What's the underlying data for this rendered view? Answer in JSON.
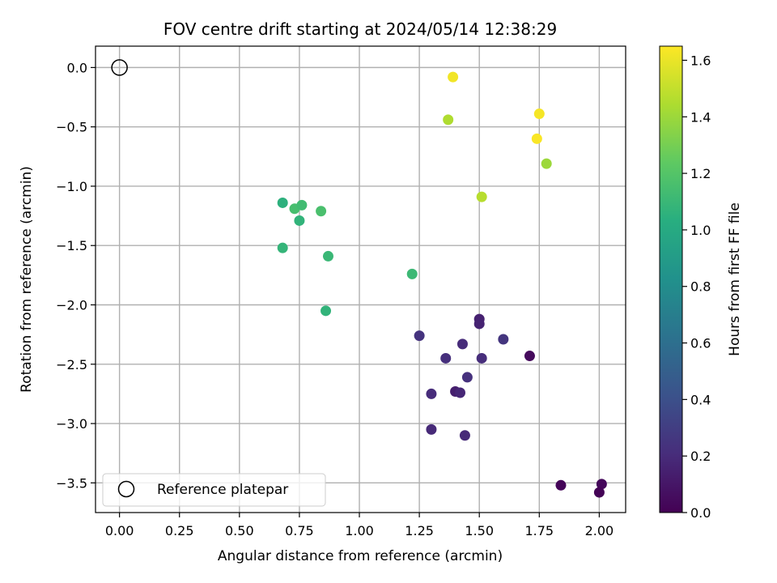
{
  "chart_data": {
    "type": "scatter",
    "title": "FOV centre drift starting at 2024/05/14 12:38:29",
    "xlabel": "Angular distance from reference (arcmin)",
    "ylabel": "Rotation from reference (arcmin)",
    "xlim": [
      -0.1,
      2.11
    ],
    "ylim": [
      -3.75,
      0.18
    ],
    "xticks": [
      "0.00",
      "0.25",
      "0.50",
      "0.75",
      "1.00",
      "1.25",
      "1.50",
      "1.75",
      "2.00"
    ],
    "xtick_values": [
      0,
      0.25,
      0.5,
      0.75,
      1.0,
      1.25,
      1.5,
      1.75,
      2.0
    ],
    "yticks": [
      "0.0",
      "−0.5",
      "−1.0",
      "−1.5",
      "−2.0",
      "−2.5",
      "−3.0",
      "−3.5"
    ],
    "ytick_values": [
      0,
      -0.5,
      -1.0,
      -1.5,
      -2.0,
      -2.5,
      -3.0,
      -3.5
    ],
    "grid": true,
    "colormap": "viridis",
    "colorbar": {
      "label": "Hours from first FF file",
      "range": [
        0,
        1.65
      ],
      "ticks": [
        "0.0",
        "0.2",
        "0.4",
        "0.6",
        "0.8",
        "1.0",
        "1.2",
        "1.4",
        "1.6"
      ],
      "tick_values": [
        0,
        0.2,
        0.4,
        0.6,
        0.8,
        1.0,
        1.2,
        1.4,
        1.6
      ]
    },
    "reference": {
      "x": 0.0,
      "y": 0.0,
      "label": "Reference platepar"
    },
    "legend_position": "lower-left",
    "points": [
      {
        "x": 1.39,
        "y": -0.08,
        "c": 1.62
      },
      {
        "x": 1.37,
        "y": -0.44,
        "c": 1.45
      },
      {
        "x": 1.75,
        "y": -0.39,
        "c": 1.63
      },
      {
        "x": 1.74,
        "y": -0.6,
        "c": 1.64
      },
      {
        "x": 1.78,
        "y": -0.81,
        "c": 1.4
      },
      {
        "x": 1.51,
        "y": -1.09,
        "c": 1.47
      },
      {
        "x": 0.68,
        "y": -1.14,
        "c": 1.05
      },
      {
        "x": 0.73,
        "y": -1.19,
        "c": 1.15
      },
      {
        "x": 0.76,
        "y": -1.16,
        "c": 1.13
      },
      {
        "x": 0.75,
        "y": -1.29,
        "c": 1.07
      },
      {
        "x": 0.84,
        "y": -1.21,
        "c": 1.16
      },
      {
        "x": 0.68,
        "y": -1.52,
        "c": 1.08
      },
      {
        "x": 0.87,
        "y": -1.59,
        "c": 1.1
      },
      {
        "x": 1.22,
        "y": -1.74,
        "c": 1.11
      },
      {
        "x": 0.86,
        "y": -2.05,
        "c": 1.07
      },
      {
        "x": 1.5,
        "y": -2.12,
        "c": 0.15
      },
      {
        "x": 1.5,
        "y": -2.16,
        "c": 0.16
      },
      {
        "x": 1.25,
        "y": -2.26,
        "c": 0.24
      },
      {
        "x": 1.6,
        "y": -2.29,
        "c": 0.25
      },
      {
        "x": 1.43,
        "y": -2.33,
        "c": 0.2
      },
      {
        "x": 1.36,
        "y": -2.45,
        "c": 0.22
      },
      {
        "x": 1.51,
        "y": -2.45,
        "c": 0.21
      },
      {
        "x": 1.71,
        "y": -2.43,
        "c": 0.04
      },
      {
        "x": 1.45,
        "y": -2.61,
        "c": 0.23
      },
      {
        "x": 1.4,
        "y": -2.73,
        "c": 0.14
      },
      {
        "x": 1.42,
        "y": -2.74,
        "c": 0.18
      },
      {
        "x": 1.3,
        "y": -2.75,
        "c": 0.2
      },
      {
        "x": 1.3,
        "y": -3.05,
        "c": 0.19
      },
      {
        "x": 1.44,
        "y": -3.1,
        "c": 0.19
      },
      {
        "x": 1.84,
        "y": -3.52,
        "c": 0.02
      },
      {
        "x": 2.01,
        "y": -3.51,
        "c": 0.03
      },
      {
        "x": 2.0,
        "y": -3.58,
        "c": 0.01
      }
    ]
  }
}
